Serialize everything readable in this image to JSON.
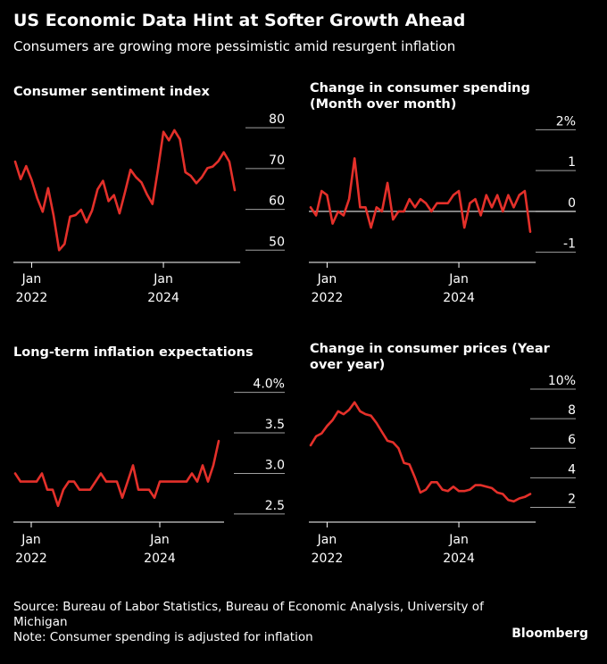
{
  "header": {
    "title": "US Economic Data Hint at Softer Growth Ahead",
    "subtitle": "Consumers are growing more pessimistic amid resurgent inflation"
  },
  "footer": {
    "source": "Source: Bureau of Labor Statistics, Bureau of Economic Analysis, University of Michigan",
    "note": "Note: Consumer spending is adjusted for inflation"
  },
  "brand": "Bloomberg",
  "colors": {
    "line": "#e4302a",
    "background": "#000000",
    "text": "#ffffff",
    "grid": "#a0a0a0"
  },
  "chart_data": [
    {
      "type": "line",
      "title": "Consumer sentiment index",
      "x_start": "2021-10",
      "x_step": "month",
      "xticks": [
        {
          "month_index": 3,
          "label": [
            "Jan",
            "2022"
          ]
        },
        {
          "month_index": 27,
          "label": [
            "Jan",
            "2024"
          ]
        }
      ],
      "yticks": [
        {
          "v": 80,
          "label": "80"
        },
        {
          "v": 70,
          "label": "70"
        },
        {
          "v": 60,
          "label": "60"
        },
        {
          "v": 50,
          "label": "50"
        }
      ],
      "ylim": [
        47,
        82
      ],
      "series": [
        {
          "values": [
            71.7,
            67.4,
            70.6,
            67.2,
            62.8,
            59.4,
            65.2,
            58.4,
            50.0,
            51.5,
            58.2,
            58.6,
            59.9,
            56.8,
            59.7,
            64.9,
            67.0,
            62.0,
            63.5,
            59.0,
            64.2,
            69.7,
            67.9,
            66.6,
            63.7,
            61.3,
            69.7,
            79.0,
            76.9,
            79.4,
            77.2,
            69.1,
            68.2,
            66.4,
            67.9,
            70.1,
            70.5,
            71.8,
            74.0,
            71.7,
            64.7
          ]
        }
      ]
    },
    {
      "type": "line",
      "title": "Change in consumer spending (Month over month)",
      "x_start": "2021-10",
      "x_step": "month",
      "xticks": [
        {
          "month_index": 3,
          "label": [
            "Jan",
            "2022"
          ]
        },
        {
          "month_index": 27,
          "label": [
            "Jan",
            "2024"
          ]
        }
      ],
      "yticks": [
        {
          "v": 2,
          "label": "2%"
        },
        {
          "v": 1,
          "label": "1"
        },
        {
          "v": 0,
          "label": "0"
        },
        {
          "v": -1,
          "label": "-1"
        }
      ],
      "ylim": [
        -1.25,
        2.25
      ],
      "zero_line": 0,
      "series": [
        {
          "values": [
            0.1,
            -0.1,
            0.5,
            0.4,
            -0.3,
            0.0,
            -0.1,
            0.3,
            1.3,
            0.1,
            0.1,
            -0.4,
            0.1,
            0.0,
            0.7,
            -0.2,
            0.0,
            0.0,
            0.3,
            0.1,
            0.3,
            0.2,
            0.0,
            0.2,
            0.2,
            0.2,
            0.4,
            0.5,
            -0.4,
            0.2,
            0.3,
            -0.1,
            0.4,
            0.1,
            0.4,
            0.0,
            0.4,
            0.1,
            0.4,
            0.5,
            -0.5
          ]
        }
      ]
    },
    {
      "type": "line",
      "title": "Long-term inflation expectations",
      "x_start": "2021-10",
      "x_step": "month",
      "xticks": [
        {
          "month_index": 3,
          "label": [
            "Jan",
            "2022"
          ]
        },
        {
          "month_index": 27,
          "label": [
            "Jan",
            "2024"
          ]
        }
      ],
      "yticks": [
        {
          "v": 4.0,
          "label": "4.0%"
        },
        {
          "v": 3.5,
          "label": "3.5"
        },
        {
          "v": 3.0,
          "label": "3.0"
        },
        {
          "v": 2.5,
          "label": "2.5"
        }
      ],
      "ylim": [
        2.4,
        4.15
      ],
      "series": [
        {
          "values": [
            3.0,
            2.9,
            2.9,
            2.9,
            2.9,
            3.0,
            2.8,
            2.8,
            2.6,
            2.8,
            2.9,
            2.9,
            2.8,
            2.8,
            2.8,
            2.9,
            3.0,
            2.9,
            2.9,
            2.9,
            2.7,
            2.9,
            3.1,
            2.8,
            2.8,
            2.8,
            2.7,
            2.9,
            2.9,
            2.9,
            2.9,
            2.9,
            2.9,
            3.0,
            2.9,
            3.1,
            2.9,
            3.1,
            3.4
          ]
        }
      ]
    },
    {
      "type": "line",
      "title": "Change in consumer prices (Year over year)",
      "x_start": "2021-10",
      "x_step": "month",
      "xticks": [
        {
          "month_index": 3,
          "label": [
            "Jan",
            "2022"
          ]
        },
        {
          "month_index": 27,
          "label": [
            "Jan",
            "2024"
          ]
        }
      ],
      "yticks": [
        {
          "v": 10,
          "label": "10%"
        },
        {
          "v": 8,
          "label": "8"
        },
        {
          "v": 6,
          "label": "6"
        },
        {
          "v": 4,
          "label": "4"
        },
        {
          "v": 2,
          "label": "2"
        }
      ],
      "ylim": [
        1.0,
        10.6
      ],
      "series": [
        {
          "values": [
            6.2,
            6.8,
            7.0,
            7.5,
            7.9,
            8.5,
            8.3,
            8.6,
            9.1,
            8.5,
            8.3,
            8.2,
            7.7,
            7.1,
            6.5,
            6.4,
            6.0,
            5.0,
            4.9,
            4.0,
            3.0,
            3.2,
            3.7,
            3.7,
            3.2,
            3.1,
            3.4,
            3.1,
            3.1,
            3.2,
            3.5,
            3.5,
            3.4,
            3.3,
            3.0,
            2.9,
            2.5,
            2.4,
            2.6,
            2.7,
            2.9
          ]
        }
      ]
    }
  ]
}
